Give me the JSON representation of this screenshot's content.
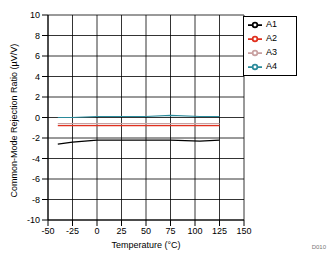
{
  "chart_data": {
    "type": "line",
    "x_label": "Temperature (°C)",
    "y_label": "Common-Mode Rejection Ratio (µV/V)",
    "annotations": [
      "D010"
    ],
    "x": [
      -40,
      -25,
      0,
      25,
      50,
      75,
      105,
      125
    ],
    "series": [
      {
        "name": "A1",
        "color": "#000000",
        "values": [
          -2.6,
          -2.4,
          -2.2,
          -2.2,
          -2.2,
          -2.2,
          -2.3,
          -2.2
        ]
      },
      {
        "name": "A2",
        "color": "#e0301e",
        "values": [
          -0.8,
          -0.8,
          -0.8,
          -0.8,
          -0.8,
          -0.8,
          -0.8,
          -0.8
        ]
      },
      {
        "name": "A3",
        "color": "#c8a0a0",
        "values": [
          -0.6,
          -0.6,
          -0.6,
          -0.6,
          -0.6,
          -0.6,
          -0.6,
          -0.6
        ]
      },
      {
        "name": "A4",
        "color": "#2a8a9a",
        "values": [
          0,
          0,
          0.1,
          0.1,
          0.1,
          0.2,
          0.1,
          0.1
        ]
      }
    ],
    "xlim": [
      -50,
      150
    ],
    "xticks": [
      -50,
      -25,
      0,
      25,
      50,
      75,
      100,
      125,
      150
    ],
    "ylim": [
      -10,
      10
    ],
    "yticks": [
      -10,
      -8,
      -6,
      -4,
      -2,
      0,
      2,
      4,
      6,
      8,
      10
    ],
    "grid": true,
    "legend": "top-right"
  }
}
